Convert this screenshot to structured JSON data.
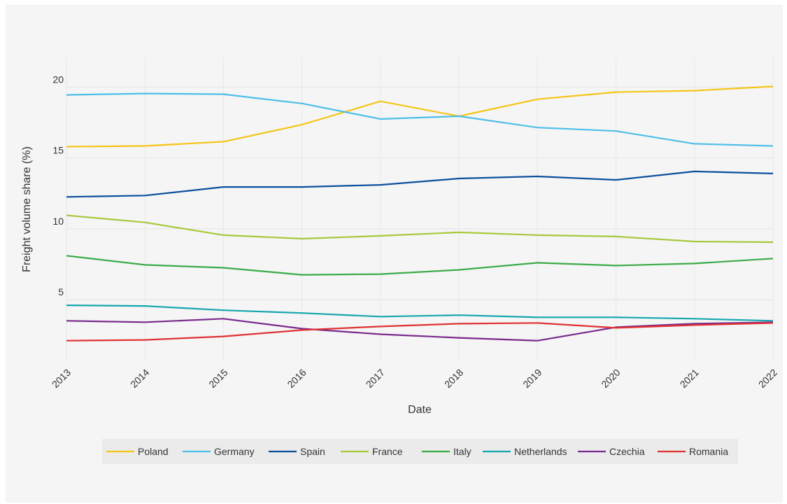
{
  "chart_data": {
    "type": "line",
    "title": "",
    "xlabel": "Date",
    "ylabel": "Freight volume share (%)",
    "x": [
      "2013",
      "2014",
      "2015",
      "2016",
      "2017",
      "2018",
      "2019",
      "2020",
      "2021",
      "2022"
    ],
    "y_ticks": [
      5,
      10,
      15,
      20
    ],
    "ylim": [
      0.6,
      22.1
    ],
    "grid": true,
    "legend_position": "bottom",
    "series": [
      {
        "name": "Poland",
        "color": "#f5c518",
        "values": [
          15.8,
          15.85,
          16.15,
          17.35,
          19.0,
          17.95,
          19.15,
          19.65,
          19.75,
          20.05
        ]
      },
      {
        "name": "Germany",
        "color": "#4dbfe8",
        "values": [
          19.45,
          19.55,
          19.5,
          18.85,
          17.75,
          17.95,
          17.15,
          16.9,
          16.0,
          15.85
        ]
      },
      {
        "name": "Spain",
        "color": "#0b4f9c",
        "values": [
          12.25,
          12.35,
          12.95,
          12.95,
          13.1,
          13.55,
          13.7,
          13.45,
          14.05,
          13.9
        ]
      },
      {
        "name": "France",
        "color": "#a8c83c",
        "values": [
          10.95,
          10.45,
          9.55,
          9.3,
          9.5,
          9.75,
          9.55,
          9.45,
          9.1,
          9.05
        ]
      },
      {
        "name": "Italy",
        "color": "#3bab48",
        "values": [
          8.1,
          7.45,
          7.25,
          6.75,
          6.8,
          7.1,
          7.6,
          7.4,
          7.55,
          7.9
        ]
      },
      {
        "name": "Netherlands",
        "color": "#14a6b0",
        "values": [
          4.6,
          4.55,
          4.25,
          4.05,
          3.8,
          3.9,
          3.75,
          3.75,
          3.65,
          3.5
        ]
      },
      {
        "name": "Czechia",
        "color": "#7a2a8c",
        "values": [
          3.5,
          3.4,
          3.65,
          2.95,
          2.55,
          2.3,
          2.1,
          3.05,
          3.3,
          3.4
        ]
      },
      {
        "name": "Romania",
        "color": "#e03131",
        "values": [
          2.1,
          2.15,
          2.4,
          2.85,
          3.1,
          3.3,
          3.35,
          3.0,
          3.2,
          3.35
        ]
      }
    ]
  }
}
